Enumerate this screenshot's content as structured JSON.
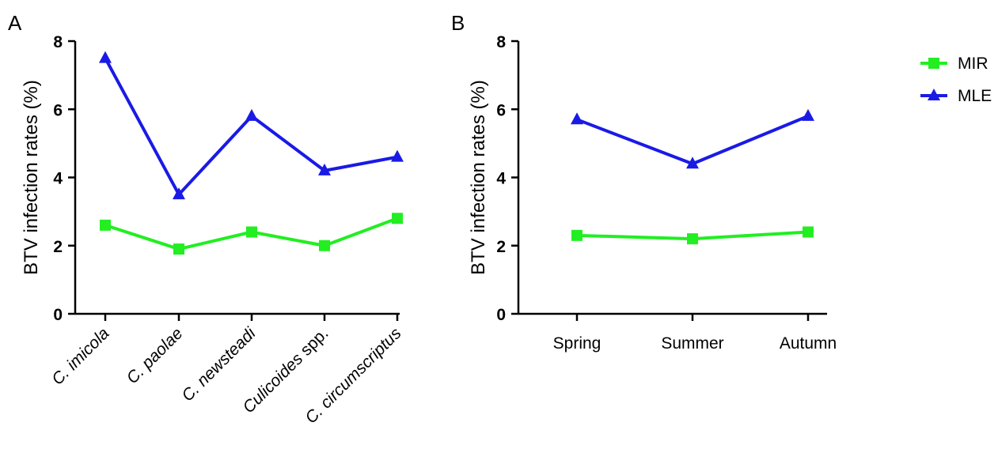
{
  "chart_data": [
    {
      "panel": "A",
      "type": "line",
      "categories": [
        {
          "italic": "C. imicola",
          "rest": ""
        },
        {
          "italic": "C. paolae",
          "rest": ""
        },
        {
          "italic": "C. newsteadi",
          "rest": ""
        },
        {
          "italic": "Culicoides",
          "rest": " spp."
        },
        {
          "italic": "C. circumscriptus",
          "rest": ""
        }
      ],
      "ylabel": "BTV infection rates (%)",
      "ylim": [
        0,
        8
      ],
      "yticks": [
        "0",
        "2",
        "4",
        "6",
        "8"
      ],
      "series": [
        {
          "name": "MIR",
          "color": "#22ee22",
          "marker": "square",
          "values": [
            2.6,
            1.9,
            2.4,
            2.0,
            2.8
          ]
        },
        {
          "name": "MLE",
          "color": "#1a1ae6",
          "marker": "triangle",
          "values": [
            7.5,
            3.5,
            5.8,
            4.2,
            4.6
          ]
        }
      ]
    },
    {
      "panel": "B",
      "type": "line",
      "categories": [
        "Spring",
        "Summer",
        "Autumn"
      ],
      "ylabel": "BTV infection rates (%)",
      "ylim": [
        0,
        8
      ],
      "yticks": [
        "0",
        "2",
        "4",
        "6",
        "8"
      ],
      "series": [
        {
          "name": "MIR",
          "color": "#22ee22",
          "marker": "square",
          "values": [
            2.3,
            2.2,
            2.4
          ]
        },
        {
          "name": "MLE",
          "color": "#1a1ae6",
          "marker": "triangle",
          "values": [
            5.7,
            4.4,
            5.8
          ]
        }
      ]
    }
  ],
  "legend": {
    "position": "top-right",
    "items": [
      {
        "label": "MIR",
        "color": "#22ee22",
        "marker": "square"
      },
      {
        "label": "MLE",
        "color": "#1a1ae6",
        "marker": "triangle"
      }
    ]
  }
}
